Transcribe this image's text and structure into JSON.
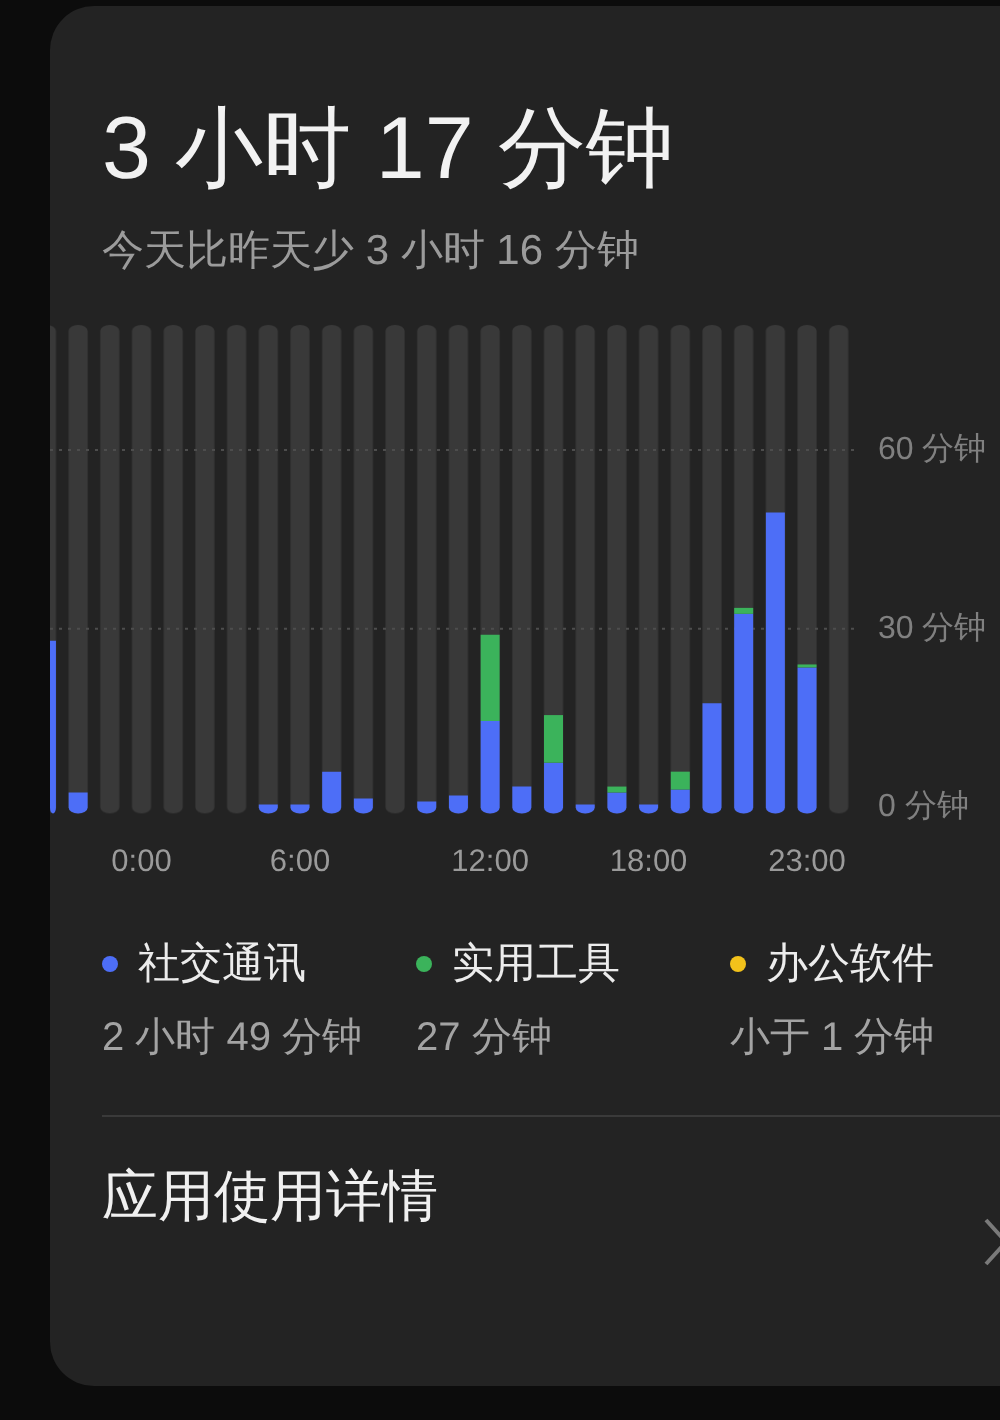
{
  "chart_data": {
    "type": "bar",
    "title": "3 小时 17 分钟",
    "subtitle": "今天比昨天少 3 小时 16 分钟",
    "categories": [
      null,
      null,
      null,
      "0:00",
      null,
      null,
      null,
      null,
      "6:00",
      null,
      null,
      null,
      null,
      null,
      "12:00",
      null,
      null,
      null,
      null,
      "18:00",
      null,
      null,
      null,
      null,
      "23:00",
      null
    ],
    "series": [
      {
        "name": "社交通讯",
        "color": "#4d6ef7",
        "values": [
          28,
          2.5,
          0,
          0,
          0,
          0,
          0,
          0.5,
          0.5,
          6,
          1.5,
          0,
          1,
          2,
          14.5,
          3.5,
          7.5,
          0.5,
          2.5,
          0.5,
          3,
          17.5,
          32.5,
          49.5,
          23.5,
          0
        ]
      },
      {
        "name": "实用工具",
        "color": "#3bb35b",
        "values": [
          0,
          0,
          0,
          0,
          0,
          0,
          0,
          0,
          0,
          0,
          0,
          0,
          0,
          0,
          14.5,
          0,
          8,
          0,
          1,
          0,
          3,
          0,
          1,
          0,
          0.5,
          0
        ]
      },
      {
        "name": "办公软件",
        "color": "#f2c21b",
        "values": [
          0,
          0,
          0,
          0,
          0,
          0,
          0,
          0,
          0,
          0,
          0,
          0,
          0,
          0,
          0,
          0,
          0,
          0,
          0,
          0,
          0,
          0,
          0,
          0,
          0,
          0
        ]
      }
    ],
    "stacked": true,
    "ylim": [
      0,
      81
    ],
    "yticks": [
      {
        "value": 0,
        "label": "0 分钟"
      },
      {
        "value": 30,
        "label": "30 分钟"
      },
      {
        "value": 60,
        "label": "60 分钟"
      }
    ],
    "grid": "y",
    "legend": "bottom",
    "annotations": [
      "2 小时 49 分钟",
      "27 分钟",
      "小于 1 分钟",
      "应用使用详情"
    ]
  }
}
